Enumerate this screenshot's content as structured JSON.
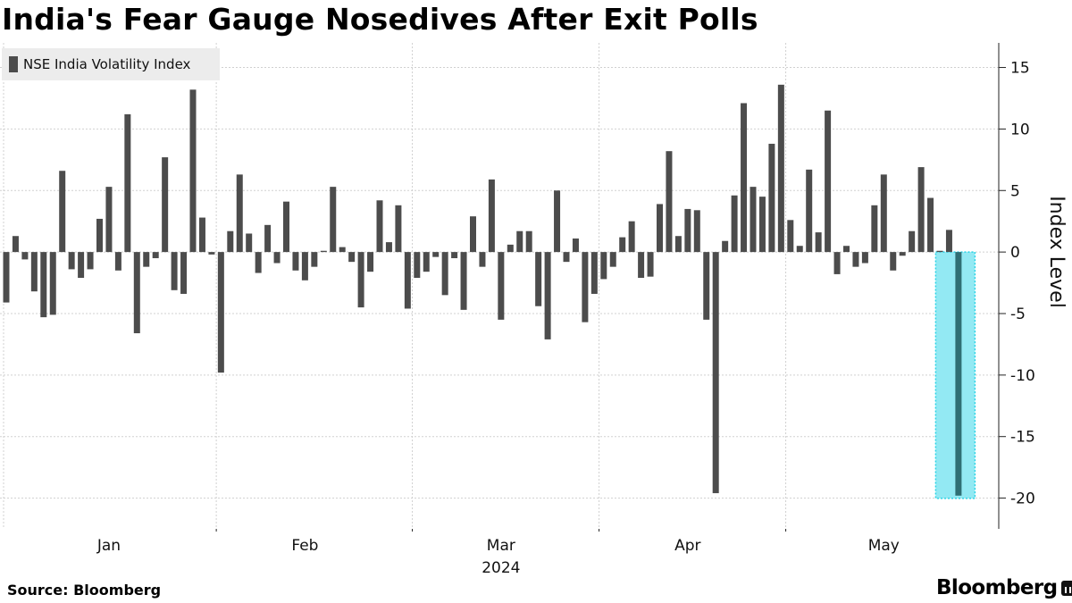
{
  "chart_data": {
    "type": "bar",
    "title": "India's Fear Gauge Nosedives After Exit Polls",
    "series": [
      {
        "name": "NSE India Volatility Index",
        "color": "#4c4c4c",
        "values": [
          -4.1,
          1.3,
          -0.6,
          -3.2,
          -5.3,
          -5.1,
          6.6,
          -1.4,
          -2.1,
          -1.4,
          2.7,
          5.3,
          -1.5,
          11.2,
          -6.6,
          -1.2,
          -0.5,
          7.7,
          -3.1,
          -3.4,
          13.2,
          2.8,
          -0.2,
          -9.8,
          1.7,
          6.3,
          1.5,
          -1.7,
          2.2,
          -0.9,
          4.1,
          -1.5,
          -2.3,
          -1.2,
          0.1,
          5.3,
          0.4,
          -0.8,
          -4.5,
          -1.6,
          4.2,
          0.8,
          3.8,
          -4.6,
          -2.1,
          -1.6,
          -0.4,
          -3.5,
          -0.5,
          -4.7,
          2.9,
          -1.2,
          5.9,
          -5.5,
          0.6,
          1.7,
          1.7,
          -4.4,
          -7.1,
          5.0,
          -0.8,
          1.1,
          -5.7,
          -3.4,
          -2.2,
          -1.2,
          1.2,
          2.5,
          -2.1,
          -2.0,
          3.9,
          8.2,
          1.3,
          3.5,
          3.4,
          -5.5,
          -19.6,
          0.9,
          4.6,
          12.1,
          5.3,
          4.5,
          8.8,
          13.6,
          2.6,
          0.5,
          6.7,
          1.6,
          11.5,
          -1.8,
          0.5,
          -1.2,
          -0.9,
          3.8,
          6.3,
          -1.5,
          -0.3,
          1.7,
          6.9,
          4.4,
          0.1,
          1.8,
          -19.8
        ]
      }
    ],
    "highlight": {
      "index": 102,
      "color": "#93e9f3",
      "border": "#2bd4e6",
      "bar_color": "#2f6f74"
    },
    "x_labels": [
      "Jan",
      "Feb",
      "Mar",
      "Apr",
      "May"
    ],
    "x_sublabel": "2024",
    "x_label_bar_index": [
      11,
      32,
      53,
      73,
      94
    ],
    "month_divider_bar_index": [
      22.5,
      43.5,
      63.5,
      83.5
    ],
    "ylabel": "Index Level",
    "ylim": [
      -22.5,
      17
    ],
    "yticks": [
      15,
      10,
      5,
      0,
      -5,
      -10,
      -15,
      -20
    ],
    "ytick_labels": [
      "15",
      "10",
      "5",
      "0",
      "-5",
      "-10",
      "-15",
      "-20"
    ],
    "grid": true,
    "legend": "top-left"
  },
  "source": "Source: Bloomberg",
  "brand": "Bloomberg"
}
